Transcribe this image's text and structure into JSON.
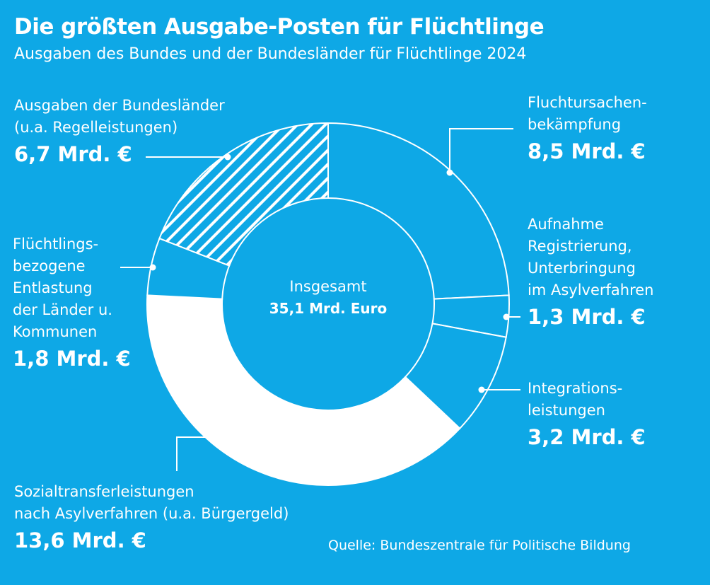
{
  "header": {
    "title": "Die größten Ausgabe-Posten für Flüchtlinge",
    "subtitle": "Ausgaben des Bundes und der Bundesländer für Flüchtlinge 2024"
  },
  "chart_data": {
    "type": "pie",
    "variant": "donut",
    "title": "Die größten Ausgabe-Posten für Flüchtlinge",
    "subtitle": "Ausgaben des Bundes und der Bundesländer für Flüchtlinge 2024",
    "unit": "Mrd. €",
    "center_label": "Insgesamt",
    "center_value": "35,1 Mrd. Euro",
    "slices": [
      {
        "name": "Fluchtursachenbekämpfung",
        "label_lines": [
          "Fluchtursachen-",
          "bekämpfung"
        ],
        "value": 8.5,
        "value_label": "8,5 Mrd. €",
        "fill": "#0ea8e6",
        "hatched": false
      },
      {
        "name": "Aufnahme Registrierung, Unterbringung im Asylverfahren",
        "label_lines": [
          "Aufnahme",
          "Registrierung,",
          "Unterbringung",
          "im Asylverfahren"
        ],
        "value": 1.3,
        "value_label": "1,3 Mrd. €",
        "fill": "#0ea8e6",
        "hatched": false
      },
      {
        "name": "Integrationsleistungen",
        "label_lines": [
          "Integrations-",
          "leistungen"
        ],
        "value": 3.2,
        "value_label": "3,2 Mrd. €",
        "fill": "#0ea8e6",
        "hatched": false
      },
      {
        "name": "Sozialtransferleistungen nach Asylverfahren (u.a. Bürgergeld)",
        "label_lines": [
          "Sozialtransferleistungen",
          "nach Asylverfahren (u.a. Bürgergeld)"
        ],
        "value": 13.6,
        "value_label": "13,6 Mrd. €",
        "fill": "#ffffff",
        "hatched": false
      },
      {
        "name": "Flüchtlingsbezogene Entlastung der Länder u. Kommunen",
        "label_lines": [
          "Flüchtlings-",
          "bezogene",
          "Entlastung",
          "der Länder u.",
          "Kommunen"
        ],
        "value": 1.8,
        "value_label": "1,8 Mrd. €",
        "fill": "#0ea8e6",
        "hatched": false
      },
      {
        "name": "Ausgaben der Bundesländer (u.a. Regelleistungen)",
        "label_lines": [
          "Ausgaben der Bundesländer",
          "(u.a. Regelleistungen)"
        ],
        "value": 6.7,
        "value_label": "6,7 Mrd. €",
        "fill": "#0ea8e6",
        "hatched": true
      }
    ],
    "source": "Quelle: Bundeszentrale für Politische Bildung"
  }
}
